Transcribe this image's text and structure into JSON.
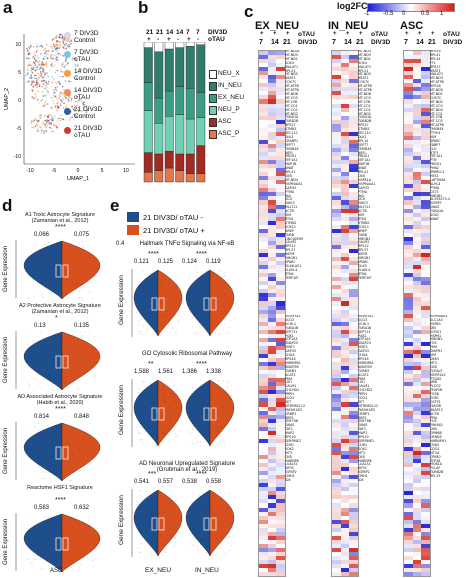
{
  "panel_a": {
    "letter": "a",
    "xlabel": "UMAP_1",
    "ylabel": "UMAP_2",
    "x_ticks": [
      "-10",
      "-5",
      "0",
      "5",
      "10"
    ],
    "y_ticks": [
      "10",
      "5",
      "0",
      "-5",
      "-10"
    ],
    "legend": [
      {
        "line1": "7 DIV3D",
        "line2": "Control",
        "color": "#d9d9d9"
      },
      {
        "line1": "7 DIV3D",
        "line2": "oTAU",
        "color": "#7ec4e0"
      },
      {
        "line1": "14 DIV3D",
        "line2": "Control",
        "color": "#f0a04a"
      },
      {
        "line1": "14 DIV3D",
        "line2": "oTAU",
        "color": "#f58a50"
      },
      {
        "line1": "21 DIV3D",
        "line2": "Control",
        "color": "#2f5fa8"
      },
      {
        "line1": "21 DIV3D",
        "line2": "oTAU",
        "color": "#d0382b"
      }
    ]
  },
  "panel_b": {
    "letter": "b",
    "header_days": [
      "21",
      "21",
      "14",
      "14",
      "7",
      "7"
    ],
    "header_signs": [
      "+",
      "-",
      "+",
      "-",
      "+",
      "-"
    ],
    "header_row1": "DIV3D",
    "header_row2": "oTAU",
    "legend": [
      {
        "label": "NEU_X",
        "color": "#ffffff"
      },
      {
        "label": "IN_NEU",
        "color": "#2e7d6e"
      },
      {
        "label": "EX_NEU",
        "color": "#3a9e86"
      },
      {
        "label": "NEU_P",
        "color": "#6fd0b4"
      },
      {
        "label": "ASC",
        "color": "#a32a22"
      },
      {
        "label": "ASC_P",
        "color": "#e0774f"
      }
    ],
    "chart_data": {
      "type": "bar",
      "stacked": true,
      "categories": [
        "21 +",
        "21 -",
        "14 +",
        "14 -",
        "7 +",
        "7 -"
      ],
      "series": [
        {
          "name": "ASC_P",
          "values": [
            0.07,
            0.08,
            0.1,
            0.08,
            0.06,
            0.06
          ]
        },
        {
          "name": "ASC",
          "values": [
            0.14,
            0.12,
            0.12,
            0.12,
            0.14,
            0.2
          ]
        },
        {
          "name": "NEU_P",
          "values": [
            0.3,
            0.22,
            0.25,
            0.28,
            0.25,
            0.2
          ]
        },
        {
          "name": "EX_NEU",
          "values": [
            0.2,
            0.18,
            0.18,
            0.2,
            0.22,
            0.18
          ]
        },
        {
          "name": "IN_NEU",
          "values": [
            0.25,
            0.33,
            0.3,
            0.28,
            0.3,
            0.34
          ]
        },
        {
          "name": "NEU_X",
          "values": [
            0.04,
            0.07,
            0.05,
            0.04,
            0.03,
            0.02
          ]
        }
      ]
    }
  },
  "panel_c": {
    "letter": "c",
    "scale_title": "log2FC",
    "scale_ticks": [
      "-1",
      "-0.5",
      "0",
      "0.5",
      "1"
    ],
    "groups": [
      {
        "name": "EX_NEU",
        "days": [
          "7",
          "14",
          "21"
        ],
        "genes_top": [
          "MT-ND4L",
          "MT-ND3",
          "MT-ND1",
          "SOX4",
          "MALAT1",
          "RPL21",
          "MT-ND5",
          "NEAT1",
          "COX7C",
          "MT-ATP8",
          "MT-ATP6",
          "MT-ND6",
          "MT-CO3",
          "MT-CYB",
          "MT-CO1",
          "MT-CO2",
          "MT-ND2",
          "TUBA1A",
          "TUBB2B",
          "RPS27",
          "STMN1",
          "SEC11C",
          "DLK1",
          "CRABP1",
          "SEPT7",
          "TMSB4X",
          "NEFL",
          "PRDX1",
          "EEF1A1",
          "MAP1B",
          "NNAT",
          "RPL41",
          "CKB",
          "MT-ND4",
          "HSP90AA1",
          "GAP43",
          "PTMA",
          "INA",
          "DCX",
          "GNG3",
          "MLLT11",
          "ACTB",
          "VIM",
          "RTN1",
          "STMN2",
          "SOX11",
          "NREP",
          "TUBB",
          "LINC00599",
          "CALM2",
          "RPS12",
          "RPL37",
          "NEFM",
          "HMGB1",
          "SPARC",
          "DLX6-AS1",
          "ELAVL4",
          "RTN4",
          "TERF2IP"
        ],
        "genes_bottom": [
          "MORF4L2",
          "SCG3",
          "UCHL1",
          "TUBA1B",
          "SEPT11",
          "PGK1",
          "ATP1A3",
          "SNAP25",
          "HINT1",
          "GAP43",
          "CHGA",
          "RPS4X",
          "HNRNPA1",
          "NDUFB9",
          "TUBB3",
          "ACAT2",
          "PKM",
          "LIX1",
          "CALM1",
          "CHCHD2",
          "PRPH",
          "CD24",
          "SET",
          "MTRNR2L12",
          "PAFAH1B3",
          "CRMP1",
          "RBP1",
          "ZNF706",
          "GNAS",
          "TAF1",
          "MAP2",
          "RPS19",
          "SERPINE2",
          "CD81",
          "SOX2",
          "MT3",
          "CKB",
          "HNRNPK",
          "LGALS1",
          "KIF5C",
          "IGFBP2",
          "CMH1",
          "ID4"
        ]
      },
      {
        "name": "IN_NEU",
        "days": [
          "7",
          "14",
          "21"
        ],
        "genes_top": [
          "MT-ND4",
          "MT-ND3",
          "MT-ND1",
          "SOX4",
          "MALAT1",
          "RPL21",
          "MT-ND5",
          "NEAT1",
          "COX7C",
          "MT-ATP8",
          "MT-ATP6",
          "MT-ND6",
          "MT-CO3",
          "MT-CYB",
          "MT-CO1",
          "MT-CO2",
          "MT-ND2",
          "TUBA1A",
          "TUBB2B",
          "RPS27",
          "STMN1",
          "SEC11C",
          "DLK1",
          "RPL10",
          "SEPT7",
          "TMSB4X",
          "NEFL",
          "PRDX1",
          "EEF1A1",
          "MAP1B",
          "NNAT",
          "RPL41",
          "CKB",
          "HSPA1A",
          "HSP90AA1",
          "GAP43",
          "PTMA",
          "INA",
          "DCX",
          "GNG3",
          "MLLT11",
          "ACTB",
          "VIM",
          "RTN1",
          "STMN2",
          "SOX11",
          "NREP",
          "TUBB",
          "HMGN2",
          "CALM2",
          "RPS12",
          "RPL37",
          "NEFM",
          "HMGB1",
          "SPARC",
          "DLX5",
          "ELAVL4",
          "RTN4",
          "TERF2IP"
        ],
        "genes_bottom": [
          "MORF4L2",
          "SCG3",
          "UCHL1",
          "TUBA1B",
          "SEPT11",
          "PGK1",
          "ATP1A3",
          "SNAP25",
          "HINT1",
          "GAP43",
          "CHGA",
          "RPS4X",
          "HNRNPA1",
          "NDUFB9",
          "TUBB3",
          "ACAT2",
          "PKM",
          "LIX1",
          "CALM1",
          "CHCHD2",
          "PRPH",
          "CD24",
          "SET",
          "MTRNR2L12",
          "PAFAH1B3",
          "CRMP1",
          "RBP1",
          "ZNF706",
          "GNAS",
          "TAF1",
          "MAP2",
          "RPS19",
          "SERPINE2",
          "CD81",
          "SOX2",
          "MT3",
          "CKB",
          "HNRNPK",
          "LGALS1",
          "KIF5C",
          "IGFBP2",
          "CMH1",
          "ID4"
        ]
      },
      {
        "name": "ASC",
        "days": [
          "7",
          "14",
          "21"
        ],
        "genes_top": [
          "RPS29",
          "RPL41",
          "RPL34",
          "FTL",
          "RPS27",
          "NEAT1",
          "MALAT1",
          "MT-ND3",
          "MT-ATP8",
          "RPS28",
          "MT-ND5",
          "MT-ND1",
          "COX7C",
          "MT-ND2",
          "MT-CO3",
          "MT-ND4",
          "MT-CO1",
          "MT-CYB",
          "MT-CO2",
          "MT-ATP6",
          "TMSB4X",
          "TTYH1",
          "VIM",
          "SPARC",
          "FABP7",
          "CLU",
          "BTF3",
          "EEF1A1",
          "PTN",
          "PRDX1",
          "PHB2",
          "SPARCL1",
          "HES1",
          "LAPTM4A",
          "KLHL4",
          "PTMA",
          "CST3",
          "HMGB1",
          "AL355075.4",
          "IGFBP7",
          "GNAS",
          "TUBA1A",
          "SOX2",
          "NNAT"
        ],
        "genes_bottom": [
          "HSP90AA1",
          "SLC1A3",
          "HSPB1",
          "DBI",
          "SCRG1",
          "HSPH1",
          "HMGN2",
          "FOS",
          "PKM",
          "DIAPH1",
          "VIM",
          "DKK3",
          "MT3",
          "CKB",
          "TCEAL3",
          "MORF4L2",
          "PTGDS",
          "UBB",
          "PLCG2",
          "TFAP2B",
          "FOSB",
          "EGR1",
          "GSTP1",
          "FAM3B",
          "AKAP12",
          "ACTB",
          "PPIA",
          "FOS",
          "YWHAQ",
          "CKB",
          "GPM6B",
          "CRNDE",
          "HNRNPH1",
          "CD63",
          "CDO1",
          "MT2A",
          "CPNE2",
          "ZFP36",
          "MOB1A",
          "PCLAF",
          "TUBB2B",
          "RPL13"
        ]
      }
    ]
  },
  "panel_d": {
    "letter": "d",
    "xlabel": "ASC",
    "ylabel": "Gene Expression",
    "plots": [
      {
        "title1": "A1 Toxic Astrocyte Signature",
        "title2": "(Zamanian et al., 2012)",
        "left": "0.066",
        "right": "0.075",
        "sig": "****"
      },
      {
        "title1": "A2 Protective Astrocyte Signature",
        "title2": "(Zamanian et al., 2012)",
        "left": "0.13",
        "right": "0.135",
        "sig": "*"
      },
      {
        "title1": "AD Associated Astrocyte Signature",
        "title2": "(Habib et al., 2020)",
        "left": "0.814",
        "right": "0.848",
        "sig": "****"
      },
      {
        "title1": "Reactome HSF1 Signature",
        "title2": "",
        "left": "0.583",
        "right": "0.632",
        "sig": "****"
      }
    ]
  },
  "panel_e": {
    "letter": "e",
    "legend": [
      {
        "label": "21 DIV3D/ oTAU -",
        "color": "#1f4e8c"
      },
      {
        "label": "21 DIV3D/ oTAU +",
        "color": "#d9501f"
      }
    ],
    "ylabel": "Gene Expression",
    "x_ticks": [
      "EX_NEU",
      "IN_NEU"
    ],
    "plots": [
      {
        "title1": "Hallmark TNFα Signaling via NF-κB",
        "prefix": "0.4",
        "vals": [
          "0.121",
          "0.125",
          "0.124",
          "0.119"
        ],
        "sigs": [
          "****",
          "****"
        ]
      },
      {
        "title1": "GO Cytosolic Ribosomal Pathway",
        "prefix": "",
        "vals": [
          "1.588",
          "1.561",
          "1.386",
          "1.338"
        ],
        "sigs": [
          "**",
          "****"
        ]
      },
      {
        "title1": "AD Neuronal Upregulated Signature",
        "title2": "(Grubman et al., 2019)",
        "prefix": "",
        "vals": [
          "0.541",
          "0.557",
          "0.538",
          "0.558"
        ],
        "sigs": [
          "***",
          "****"
        ]
      }
    ]
  }
}
